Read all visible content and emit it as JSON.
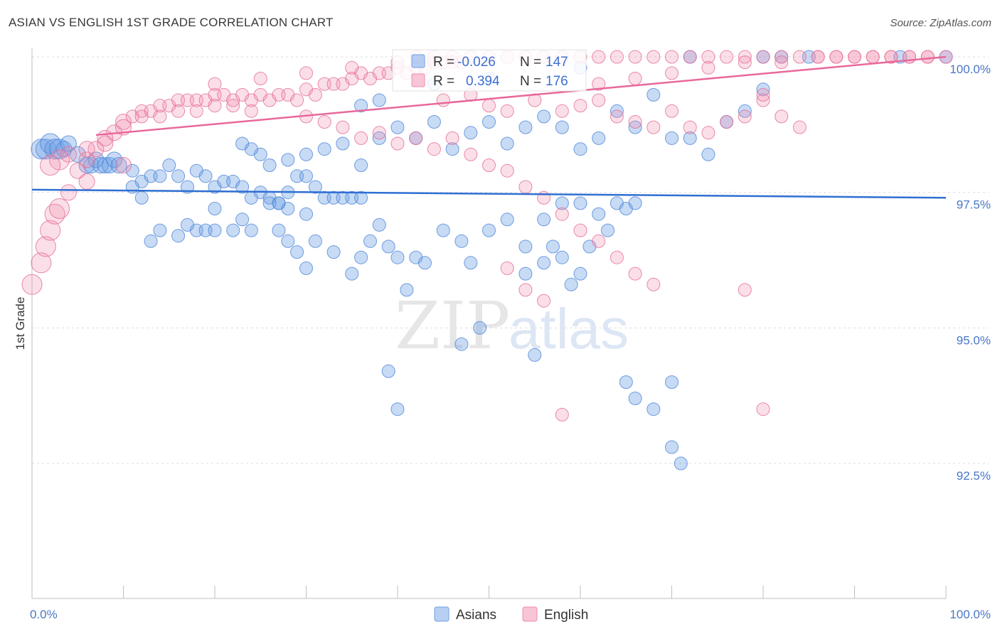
{
  "header": {
    "title": "ASIAN VS ENGLISH 1ST GRADE CORRELATION CHART",
    "source": "Source: ZipAtlas.com"
  },
  "watermark": {
    "zip": "ZIP",
    "atlas": "atlas"
  },
  "legend": {
    "r_label": "R =",
    "n_label": "N =",
    "rows": [
      {
        "r_value": "-0.026",
        "n_value": "147",
        "color": "#6fa0e6"
      },
      {
        "r_value": "0.394",
        "n_value": "176",
        "color": "#f08cab"
      }
    ]
  },
  "bottom_legend": [
    {
      "label": "Asians",
      "color": "#6fa0e6"
    },
    {
      "label": "English",
      "color": "#f08cab"
    }
  ],
  "chart_data": {
    "type": "scatter",
    "title": "ASIAN VS ENGLISH 1ST GRADE CORRELATION CHART",
    "xlabel": "",
    "ylabel": "1st Grade",
    "x_tick_labels": [
      "0.0%",
      "100.0%"
    ],
    "y_tick_labels": [
      "100.0%",
      "97.5%",
      "95.0%",
      "92.5%"
    ],
    "y_ticks": [
      100.0,
      97.5,
      95.0,
      92.5
    ],
    "xlim": [
      0,
      100
    ],
    "ylim": [
      90.0,
      100.2
    ],
    "grid": true,
    "legend_position": "top-center",
    "series": [
      {
        "name": "Asians",
        "color": "#6fa0e6",
        "stroke": "#4f86d8",
        "trend": {
          "x": [
            0,
            100
          ],
          "y": [
            97.55,
            97.4
          ]
        },
        "points": [
          [
            1,
            98.3
          ],
          [
            1.5,
            98.3
          ],
          [
            2,
            98.4
          ],
          [
            2.5,
            98.3
          ],
          [
            3,
            98.3
          ],
          [
            3.5,
            98.3
          ],
          [
            4,
            98.4
          ],
          [
            5,
            98.2
          ],
          [
            6,
            98.0
          ],
          [
            6.5,
            98.0
          ],
          [
            7,
            98.1
          ],
          [
            7.5,
            98.0
          ],
          [
            8,
            98.0
          ],
          [
            8.5,
            98.0
          ],
          [
            9,
            98.1
          ],
          [
            9.5,
            98.0
          ],
          [
            11,
            97.9
          ],
          [
            12,
            97.7
          ],
          [
            13,
            97.8
          ],
          [
            14,
            97.8
          ],
          [
            15,
            98.0
          ],
          [
            16,
            97.8
          ],
          [
            17,
            97.6
          ],
          [
            18,
            97.9
          ],
          [
            19,
            97.8
          ],
          [
            20,
            97.6
          ],
          [
            21,
            97.7
          ],
          [
            22,
            97.7
          ],
          [
            23,
            97.6
          ],
          [
            24,
            97.4
          ],
          [
            25,
            97.5
          ],
          [
            26,
            97.4
          ],
          [
            27,
            97.3
          ],
          [
            28,
            97.5
          ],
          [
            29,
            97.8
          ],
          [
            30,
            97.8
          ],
          [
            31,
            97.6
          ],
          [
            32,
            97.4
          ],
          [
            33,
            97.4
          ],
          [
            34,
            97.4
          ],
          [
            35,
            97.4
          ],
          [
            36,
            97.4
          ],
          [
            12,
            97.4
          ],
          [
            11,
            97.6
          ],
          [
            20,
            97.2
          ],
          [
            23,
            97.0
          ],
          [
            26,
            97.3
          ],
          [
            28,
            97.2
          ],
          [
            30,
            97.1
          ],
          [
            27,
            97.3
          ],
          [
            16,
            96.7
          ],
          [
            14,
            96.8
          ],
          [
            13,
            96.6
          ],
          [
            18,
            96.8
          ],
          [
            19,
            96.8
          ],
          [
            17,
            96.9
          ],
          [
            20,
            96.8
          ],
          [
            22,
            96.8
          ],
          [
            24,
            96.8
          ],
          [
            27,
            96.8
          ],
          [
            28,
            96.6
          ],
          [
            29,
            96.4
          ],
          [
            30,
            96.1
          ],
          [
            31,
            96.6
          ],
          [
            33,
            96.4
          ],
          [
            35,
            96.0
          ],
          [
            36,
            96.3
          ],
          [
            37,
            96.6
          ],
          [
            38,
            96.9
          ],
          [
            39,
            96.5
          ],
          [
            40,
            96.3
          ],
          [
            41,
            95.7
          ],
          [
            42,
            96.3
          ],
          [
            43,
            96.2
          ],
          [
            45,
            96.8
          ],
          [
            47,
            96.6
          ],
          [
            48,
            96.2
          ],
          [
            50,
            96.8
          ],
          [
            52,
            97.0
          ],
          [
            54,
            96.5
          ],
          [
            56,
            97.0
          ],
          [
            58,
            97.3
          ],
          [
            60,
            97.3
          ],
          [
            62,
            97.1
          ],
          [
            64,
            97.3
          ],
          [
            65,
            97.2
          ],
          [
            66,
            97.3
          ],
          [
            63,
            96.8
          ],
          [
            61,
            96.5
          ],
          [
            58,
            96.3
          ],
          [
            56,
            96.2
          ],
          [
            54,
            96.0
          ],
          [
            57,
            96.5
          ],
          [
            59,
            95.8
          ],
          [
            60,
            96.0
          ],
          [
            55,
            94.5
          ],
          [
            47,
            94.7
          ],
          [
            49,
            95.0
          ],
          [
            39,
            94.2
          ],
          [
            40,
            93.5
          ],
          [
            65,
            94.0
          ],
          [
            66,
            93.7
          ],
          [
            68,
            93.5
          ],
          [
            70,
            94.0
          ],
          [
            70,
            92.8
          ],
          [
            71,
            92.5
          ],
          [
            36,
            98.0
          ],
          [
            38,
            98.5
          ],
          [
            40,
            98.7
          ],
          [
            42,
            98.5
          ],
          [
            44,
            98.8
          ],
          [
            46,
            98.3
          ],
          [
            48,
            98.6
          ],
          [
            50,
            98.8
          ],
          [
            52,
            98.4
          ],
          [
            54,
            98.7
          ],
          [
            56,
            98.9
          ],
          [
            58,
            98.7
          ],
          [
            60,
            98.3
          ],
          [
            62,
            98.5
          ],
          [
            64,
            99.0
          ],
          [
            66,
            98.7
          ],
          [
            68,
            99.3
          ],
          [
            70,
            98.5
          ],
          [
            72,
            98.5
          ],
          [
            74,
            98.2
          ],
          [
            76,
            98.8
          ],
          [
            78,
            99.0
          ],
          [
            80,
            99.4
          ],
          [
            34,
            98.4
          ],
          [
            32,
            98.3
          ],
          [
            30,
            98.2
          ],
          [
            28,
            98.1
          ],
          [
            26,
            98.0
          ],
          [
            25,
            98.2
          ],
          [
            24,
            98.3
          ],
          [
            23,
            98.4
          ],
          [
            50,
            99.6
          ],
          [
            60,
            99.8
          ],
          [
            72,
            100.0
          ],
          [
            80,
            100.0
          ],
          [
            82,
            100.0
          ],
          [
            85,
            100.0
          ],
          [
            95,
            100.0
          ],
          [
            100,
            100.0
          ],
          [
            44,
            99.5
          ],
          [
            38,
            99.2
          ],
          [
            36,
            99.1
          ]
        ]
      },
      {
        "name": "English",
        "color": "#f08cab",
        "stroke": "#e56d96",
        "trend": {
          "x": [
            0,
            100
          ],
          "y": [
            98.45,
            100.0
          ]
        },
        "points": [
          [
            0,
            95.8
          ],
          [
            1,
            96.2
          ],
          [
            1.5,
            96.5
          ],
          [
            2,
            96.8
          ],
          [
            2.5,
            97.1
          ],
          [
            3,
            97.2
          ],
          [
            4,
            97.5
          ],
          [
            5,
            97.9
          ],
          [
            6,
            98.1
          ],
          [
            7,
            98.3
          ],
          [
            8,
            98.4
          ],
          [
            9,
            98.6
          ],
          [
            10,
            98.8
          ],
          [
            11,
            98.9
          ],
          [
            12,
            99.0
          ],
          [
            13,
            99.0
          ],
          [
            14,
            99.1
          ],
          [
            15,
            99.1
          ],
          [
            16,
            99.2
          ],
          [
            17,
            99.2
          ],
          [
            18,
            99.2
          ],
          [
            19,
            99.2
          ],
          [
            20,
            99.3
          ],
          [
            21,
            99.3
          ],
          [
            22,
            99.2
          ],
          [
            23,
            99.3
          ],
          [
            24,
            99.2
          ],
          [
            25,
            99.3
          ],
          [
            26,
            99.2
          ],
          [
            27,
            99.3
          ],
          [
            28,
            99.3
          ],
          [
            29,
            99.2
          ],
          [
            30,
            99.4
          ],
          [
            31,
            99.3
          ],
          [
            32,
            99.5
          ],
          [
            33,
            99.5
          ],
          [
            34,
            99.5
          ],
          [
            35,
            99.6
          ],
          [
            36,
            99.7
          ],
          [
            37,
            99.6
          ],
          [
            38,
            99.7
          ],
          [
            39,
            99.7
          ],
          [
            40,
            99.8
          ],
          [
            41,
            99.7
          ],
          [
            42,
            99.8
          ],
          [
            43,
            99.8
          ],
          [
            44,
            99.9
          ],
          [
            45,
            99.9
          ],
          [
            46,
            99.9
          ],
          [
            47,
            99.9
          ],
          [
            48,
            100.0
          ],
          [
            50,
            100.0
          ],
          [
            52,
            100.0
          ],
          [
            54,
            100.0
          ],
          [
            56,
            100.0
          ],
          [
            58,
            100.0
          ],
          [
            60,
            100.0
          ],
          [
            62,
            100.0
          ],
          [
            64,
            100.0
          ],
          [
            66,
            100.0
          ],
          [
            68,
            100.0
          ],
          [
            70,
            100.0
          ],
          [
            72,
            100.0
          ],
          [
            74,
            100.0
          ],
          [
            76,
            100.0
          ],
          [
            78,
            100.0
          ],
          [
            80,
            100.0
          ],
          [
            82,
            100.0
          ],
          [
            84,
            100.0
          ],
          [
            86,
            100.0
          ],
          [
            88,
            100.0
          ],
          [
            90,
            100.0
          ],
          [
            92,
            100.0
          ],
          [
            94,
            100.0
          ],
          [
            96,
            100.0
          ],
          [
            98,
            100.0
          ],
          [
            100,
            100.0
          ],
          [
            45,
            99.2
          ],
          [
            48,
            99.3
          ],
          [
            50,
            99.1
          ],
          [
            52,
            99.0
          ],
          [
            55,
            99.2
          ],
          [
            58,
            99.0
          ],
          [
            60,
            99.1
          ],
          [
            62,
            99.2
          ],
          [
            64,
            98.9
          ],
          [
            66,
            98.8
          ],
          [
            68,
            98.7
          ],
          [
            70,
            99.0
          ],
          [
            72,
            98.7
          ],
          [
            74,
            98.6
          ],
          [
            76,
            98.8
          ],
          [
            78,
            98.9
          ],
          [
            80,
            99.2
          ],
          [
            82,
            98.9
          ],
          [
            84,
            98.7
          ],
          [
            30,
            98.9
          ],
          [
            32,
            98.8
          ],
          [
            34,
            98.7
          ],
          [
            36,
            98.5
          ],
          [
            38,
            98.6
          ],
          [
            40,
            98.4
          ],
          [
            42,
            98.5
          ],
          [
            44,
            98.3
          ],
          [
            46,
            98.5
          ],
          [
            48,
            98.2
          ],
          [
            50,
            98.0
          ],
          [
            52,
            97.9
          ],
          [
            54,
            97.6
          ],
          [
            56,
            97.4
          ],
          [
            58,
            97.1
          ],
          [
            60,
            96.8
          ],
          [
            62,
            96.6
          ],
          [
            64,
            96.3
          ],
          [
            66,
            96.0
          ],
          [
            68,
            95.8
          ],
          [
            52,
            96.1
          ],
          [
            54,
            95.7
          ],
          [
            56,
            95.5
          ],
          [
            58,
            93.4
          ],
          [
            78,
            95.7
          ],
          [
            80,
            93.5
          ],
          [
            24,
            99.0
          ],
          [
            22,
            99.1
          ],
          [
            20,
            99.1
          ],
          [
            18,
            99.0
          ],
          [
            16,
            99.0
          ],
          [
            14,
            98.9
          ],
          [
            12,
            98.9
          ],
          [
            10,
            98.7
          ],
          [
            8,
            98.5
          ],
          [
            6,
            98.3
          ],
          [
            4,
            98.2
          ],
          [
            3,
            98.1
          ],
          [
            2,
            98.0
          ],
          [
            6,
            97.7
          ],
          [
            10,
            98.0
          ],
          [
            20,
            99.5
          ],
          [
            25,
            99.6
          ],
          [
            30,
            99.7
          ],
          [
            35,
            99.8
          ],
          [
            40,
            99.9
          ],
          [
            42,
            100.0
          ],
          [
            44,
            100.0
          ],
          [
            46,
            100.0
          ],
          [
            62,
            99.5
          ],
          [
            66,
            99.6
          ],
          [
            70,
            99.7
          ],
          [
            74,
            99.8
          ],
          [
            78,
            99.9
          ],
          [
            82,
            99.9
          ],
          [
            86,
            100.0
          ],
          [
            88,
            100.0
          ],
          [
            90,
            100.0
          ],
          [
            92,
            100.0
          ],
          [
            94,
            100.0
          ],
          [
            96,
            100.0
          ],
          [
            98,
            100.0
          ],
          [
            80,
            99.3
          ]
        ]
      }
    ]
  }
}
